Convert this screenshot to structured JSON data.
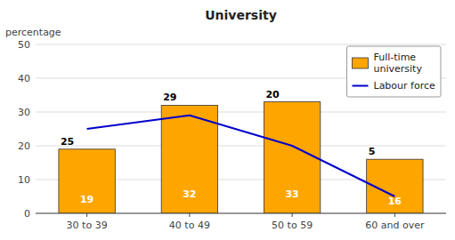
{
  "chart_data": {
    "type": "bar",
    "title": "University",
    "y_label": "percentage",
    "categories": [
      "30 to 39",
      "40 to 49",
      "50 to 59",
      "60 and over"
    ],
    "series": [
      {
        "name": "Full-time\nuniversity",
        "type": "bar",
        "color": "#FFA500",
        "values": [
          19,
          32,
          33,
          16
        ],
        "data_labels": true
      },
      {
        "name": "Labour force",
        "type": "line",
        "color": "#0000CC",
        "values": [
          25,
          29,
          20,
          5
        ],
        "data_labels": true
      }
    ],
    "ylim": [
      0,
      50
    ],
    "yticks": [
      0,
      10,
      20,
      30,
      40,
      50
    ],
    "grid": true,
    "legend": "upper right"
  }
}
